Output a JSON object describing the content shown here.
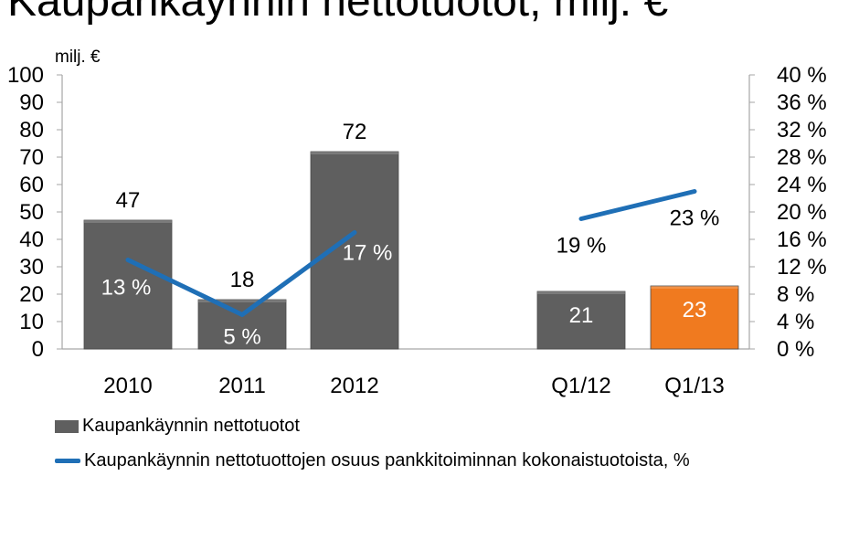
{
  "title": "Kaupankäynnin nettotuotot, milj. €",
  "chart_data": {
    "type": "bar",
    "unit_label": "milj. €",
    "categories": [
      "2010",
      "2011",
      "2012",
      "Q1/12",
      "Q1/13"
    ],
    "series": [
      {
        "name": "Kaupankäynnin nettotuotot",
        "type": "bar",
        "axis": "left",
        "values": [
          47,
          18,
          72,
          21,
          23
        ],
        "data_labels": [
          "47",
          "18",
          "72",
          "21",
          "23"
        ],
        "colors": [
          "#5f5f5f",
          "#5f5f5f",
          "#5f5f5f",
          "#5f5f5f",
          "#f07a1f"
        ]
      },
      {
        "name": "Kaupankäynnin nettotuottojen osuus pankkitoiminnan kokonaistuotoista, %",
        "type": "line",
        "axis": "right",
        "color": "#1f6fb6",
        "segments": [
          {
            "categories": [
              "2010",
              "2011",
              "2012"
            ],
            "values": [
              13,
              5,
              17
            ],
            "data_labels": [
              "13 %",
              "5 %",
              "17 %"
            ]
          },
          {
            "categories": [
              "Q1/12",
              "Q1/13"
            ],
            "values": [
              19,
              23
            ],
            "data_labels": [
              "19 %",
              "23 %"
            ]
          }
        ]
      }
    ],
    "left_axis": {
      "min": 0,
      "max": 100,
      "ticks": [
        "0",
        "10",
        "20",
        "30",
        "40",
        "50",
        "60",
        "70",
        "80",
        "90",
        "100"
      ]
    },
    "right_axis": {
      "min": 0,
      "max": 40,
      "ticks": [
        "0 %",
        "4 %",
        "8 %",
        "12 %",
        "16 %",
        "20 %",
        "24 %",
        "28 %",
        "32 %",
        "36 %",
        "40 %"
      ]
    },
    "grid": false,
    "legend_position": "bottom-left"
  },
  "legend": {
    "bar_label": "Kaupankäynnin nettotuotot",
    "line_label": "Kaupankäynnin nettotuottojen osuus pankkitoiminnan kokonaistuotoista, %"
  }
}
